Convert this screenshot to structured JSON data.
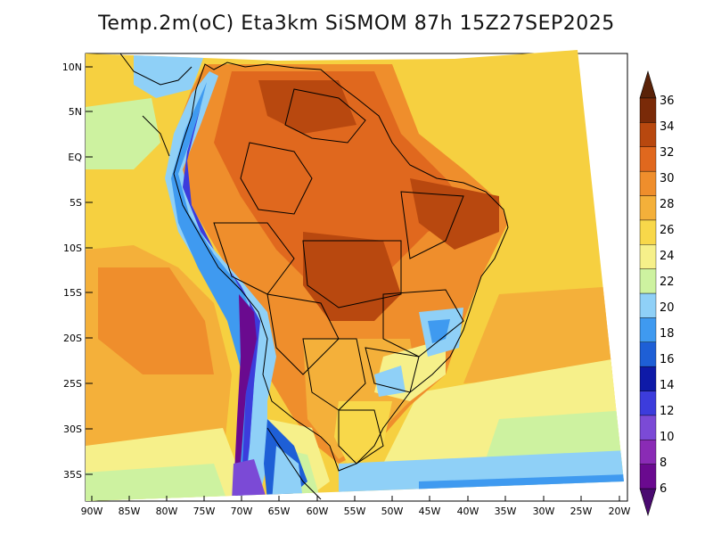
{
  "title": "Temp.2m(oC) Eta3km SiSMOM 87h 15Z27SEP2025",
  "lat_ticks": [
    "10N",
    "5N",
    "EQ",
    "5S",
    "10S",
    "15S",
    "20S",
    "25S",
    "30S",
    "35S"
  ],
  "lon_ticks": [
    "90W",
    "85W",
    "80W",
    "75W",
    "70W",
    "65W",
    "60W",
    "55W",
    "50W",
    "45W",
    "40W",
    "35W",
    "30W",
    "25W",
    "20W"
  ],
  "colorbar": {
    "labels": [
      "6",
      "8",
      "10",
      "12",
      "14",
      "16",
      "18",
      "20",
      "22",
      "24",
      "26",
      "28",
      "30",
      "32",
      "34",
      "36"
    ],
    "colors": [
      "#6a0a8f",
      "#8a2bb5",
      "#7b4ad6",
      "#3c3cdc",
      "#0e1aa8",
      "#1e5fd6",
      "#3f9af0",
      "#8fd0f7",
      "#cdf2a0",
      "#f6f08a",
      "#f8d84a",
      "#f4b03a",
      "#ef8e2c",
      "#e0681e",
      "#b8480f",
      "#7a2a08"
    ]
  }
}
